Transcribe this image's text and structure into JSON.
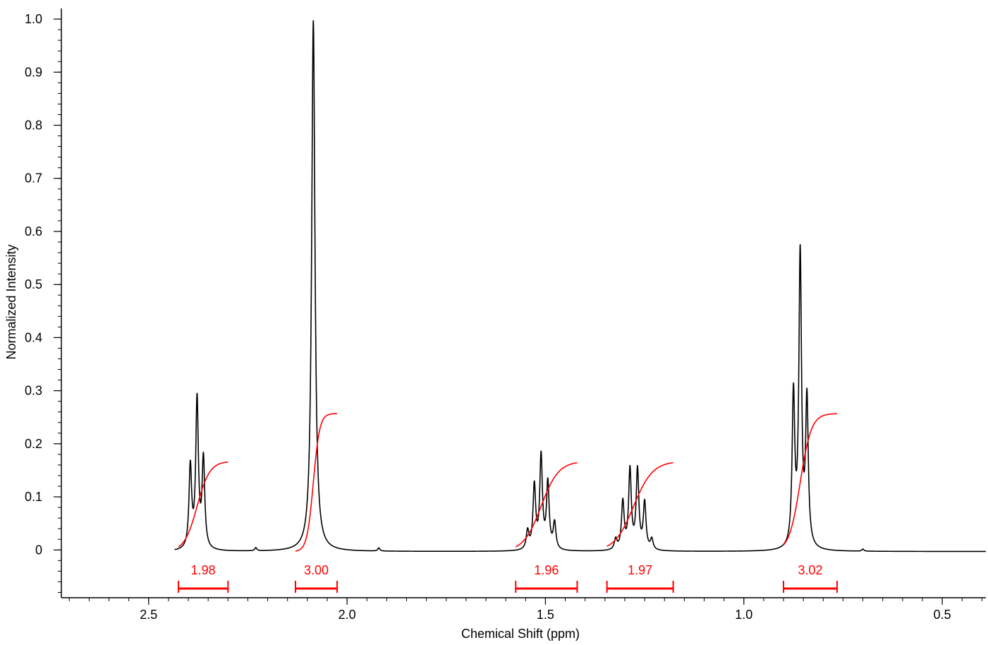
{
  "chart_data": {
    "type": "line",
    "title": "",
    "xlabel": "Chemical Shift (ppm)",
    "ylabel": "Normalized Intensity",
    "xlim": [
      2.72,
      0.39
    ],
    "ylim": [
      -0.09,
      1.02
    ],
    "x_ticks": [
      2.5,
      2.0,
      1.5,
      1.0,
      0.5
    ],
    "x_tick_labels": [
      "2.5",
      "2.0",
      "1.5",
      "1.0",
      "0.5"
    ],
    "y_ticks": [
      0,
      0.1,
      0.2,
      0.3,
      0.4,
      0.5,
      0.6,
      0.7,
      0.8,
      0.9,
      1.0
    ],
    "y_tick_labels": [
      "0",
      "0.1",
      "0.2",
      "0.3",
      "0.4",
      "0.5",
      "0.6",
      "0.7",
      "0.8",
      "0.9",
      "1.0"
    ],
    "grid": false,
    "baseline": -0.003,
    "spectrum_color": "#000000",
    "integral_color": "#ff0000",
    "peaks": [
      {
        "ppm": 2.395,
        "height": 0.155,
        "width": 0.004
      },
      {
        "ppm": 2.378,
        "height": 0.28,
        "width": 0.004
      },
      {
        "ppm": 2.362,
        "height": 0.168,
        "width": 0.004
      },
      {
        "ppm": 2.23,
        "height": 0.006,
        "width": 0.003
      },
      {
        "ppm": 2.085,
        "height": 1.0,
        "width": 0.005
      },
      {
        "ppm": 1.92,
        "height": 0.006,
        "width": 0.003
      },
      {
        "ppm": 1.545,
        "height": 0.035,
        "width": 0.004
      },
      {
        "ppm": 1.528,
        "height": 0.12,
        "width": 0.004
      },
      {
        "ppm": 1.511,
        "height": 0.175,
        "width": 0.004
      },
      {
        "ppm": 1.494,
        "height": 0.125,
        "width": 0.004
      },
      {
        "ppm": 1.477,
        "height": 0.05,
        "width": 0.004
      },
      {
        "ppm": 1.323,
        "height": 0.02,
        "width": 0.004
      },
      {
        "ppm": 1.305,
        "height": 0.09,
        "width": 0.004
      },
      {
        "ppm": 1.287,
        "height": 0.15,
        "width": 0.004
      },
      {
        "ppm": 1.268,
        "height": 0.15,
        "width": 0.004
      },
      {
        "ppm": 1.25,
        "height": 0.088,
        "width": 0.004
      },
      {
        "ppm": 1.232,
        "height": 0.02,
        "width": 0.004
      },
      {
        "ppm": 0.875,
        "height": 0.285,
        "width": 0.004
      },
      {
        "ppm": 0.858,
        "height": 0.55,
        "width": 0.004
      },
      {
        "ppm": 0.841,
        "height": 0.275,
        "width": 0.004
      },
      {
        "ppm": 0.7,
        "height": 0.004,
        "width": 0.003
      }
    ],
    "integrals": [
      {
        "label": "1.98",
        "from": 2.425,
        "to": 2.3,
        "center": 2.378,
        "spread": 0.016,
        "top": 0.17
      },
      {
        "label": "3.00",
        "from": 2.13,
        "to": 2.025,
        "center": 2.085,
        "spread": 0.008,
        "top": 0.26
      },
      {
        "label": "1.96",
        "from": 1.575,
        "to": 1.42,
        "center": 1.511,
        "spread": 0.022,
        "top": 0.17
      },
      {
        "label": "1.97",
        "from": 1.345,
        "to": 1.178,
        "center": 1.278,
        "spread": 0.024,
        "top": 0.17
      },
      {
        "label": "3.02",
        "from": 0.9,
        "to": 0.765,
        "center": 0.858,
        "spread": 0.014,
        "top": 0.26
      }
    ]
  }
}
